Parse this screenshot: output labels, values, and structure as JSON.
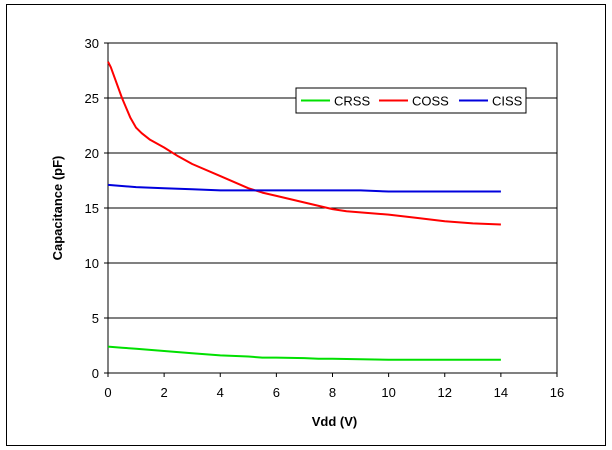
{
  "chart_data": {
    "type": "line",
    "title": "",
    "xlabel": "Vdd (V)",
    "ylabel": "Capacitance (pF)",
    "xlim": [
      0,
      16
    ],
    "ylim": [
      0,
      30
    ],
    "xticks": [
      0,
      2,
      4,
      6,
      8,
      10,
      12,
      14,
      16
    ],
    "yticks": [
      0,
      5,
      10,
      15,
      20,
      25,
      30
    ],
    "grid": "horizontal",
    "legend_position": "top-right",
    "series": [
      {
        "name": "CRSS",
        "color": "#00e000",
        "x": [
          0,
          0.5,
          1,
          2,
          3,
          4,
          5,
          5.5,
          6,
          7,
          7.5,
          8,
          9,
          10,
          11,
          12,
          13,
          14
        ],
        "y": [
          2.4,
          2.3,
          2.2,
          2.0,
          1.8,
          1.6,
          1.5,
          1.4,
          1.4,
          1.35,
          1.3,
          1.3,
          1.25,
          1.2,
          1.2,
          1.2,
          1.2,
          1.2
        ]
      },
      {
        "name": "COSS",
        "color": "#ff0000",
        "x": [
          0,
          0.1,
          0.5,
          0.8,
          1,
          1.2,
          1.5,
          2,
          2.5,
          3,
          4,
          5,
          5.5,
          6,
          7,
          8,
          8.5,
          10,
          11,
          12,
          13,
          14
        ],
        "y": [
          28.3,
          27.8,
          25.0,
          23.2,
          22.3,
          21.8,
          21.2,
          20.5,
          19.7,
          19.0,
          17.9,
          16.8,
          16.4,
          16.1,
          15.5,
          14.9,
          14.7,
          14.4,
          14.1,
          13.8,
          13.6,
          13.5
        ]
      },
      {
        "name": "CISS",
        "color": "#0000dd",
        "x": [
          0,
          1,
          2,
          3,
          4,
          5,
          6,
          7,
          8,
          9,
          10,
          11,
          12,
          13,
          14
        ],
        "y": [
          17.1,
          16.9,
          16.8,
          16.7,
          16.6,
          16.6,
          16.6,
          16.6,
          16.6,
          16.6,
          16.5,
          16.5,
          16.5,
          16.5,
          16.5
        ]
      }
    ]
  }
}
